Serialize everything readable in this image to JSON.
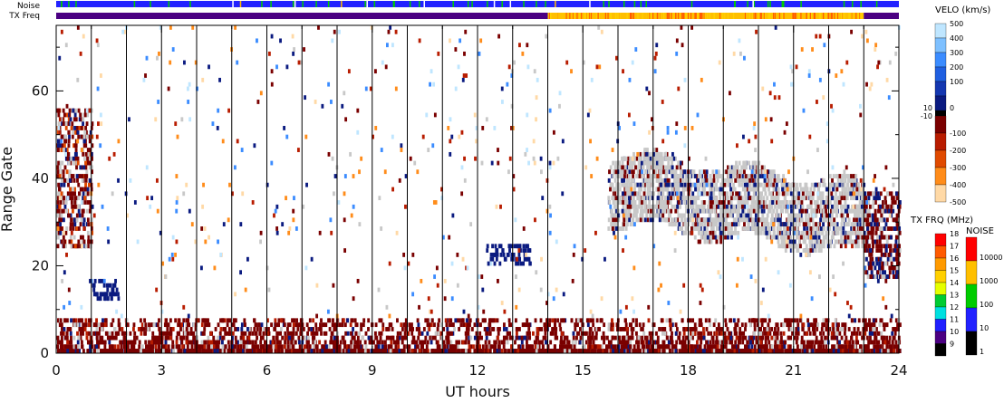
{
  "chart_data": {
    "type": "heatmap",
    "xlabel": "UT hours",
    "ylabel": "Range Gate",
    "xlim": [
      0,
      24
    ],
    "ylim": [
      0,
      75
    ],
    "x_ticks": [
      "0",
      "3",
      "6",
      "9",
      "12",
      "15",
      "18",
      "21",
      "24"
    ],
    "x_tick_values": [
      0,
      3,
      6,
      9,
      12,
      15,
      18,
      21,
      24
    ],
    "y_ticks": [
      "0",
      "20",
      "40",
      "60"
    ],
    "y_tick_values": [
      0,
      20,
      40,
      60
    ],
    "scan_boundaries_hours": [
      1,
      2,
      3,
      4,
      5,
      6,
      7,
      8,
      9,
      10,
      11,
      12,
      13,
      14,
      15,
      16,
      17,
      18,
      19,
      20,
      21,
      22,
      23
    ],
    "top_strips": {
      "noise_label": "Noise",
      "txfreq_label": "TX Freq",
      "txfreq_segments": [
        {
          "start": 0,
          "end": 14,
          "color": "#4b0082"
        },
        {
          "start": 14,
          "end": 23,
          "color": "#ffbf00"
        },
        {
          "start": 23,
          "end": 24,
          "color": "#4b0082"
        }
      ]
    },
    "ground_scatter_color": "#c8c8c8",
    "scatter_regions": [
      {
        "name": "ground-scatter",
        "x": [
          15.7,
          23.0
        ],
        "y": [
          28,
          46
        ],
        "color": "#c8c8c8"
      },
      {
        "name": "negative-velocity",
        "x": [
          0.0,
          1.0
        ],
        "y": [
          24,
          58
        ],
        "color": "#8b0000"
      },
      {
        "name": "negative-velocity",
        "x": [
          23.0,
          24.0
        ],
        "y": [
          18,
          36
        ],
        "color": "#8b0000"
      },
      {
        "name": "near-range",
        "x": [
          0.0,
          24.0
        ],
        "y": [
          0,
          8
        ],
        "color": "#8b0000"
      },
      {
        "name": "positive-velocity",
        "x": [
          12.2,
          13.5
        ],
        "y": [
          20,
          25
        ],
        "color": "#000080"
      }
    ],
    "velocity_legend": {
      "title": "VELO (km/s)",
      "labels_positive": [
        "500",
        "400",
        "300",
        "200",
        "100",
        "0"
      ],
      "colors_positive": [
        "#bfe6ff",
        "#7ec0ff",
        "#3b8cff",
        "#1f5fe0",
        "#1437b0",
        "#0a1a80"
      ],
      "zero_labels": [
        "10",
        "-10"
      ],
      "labels_negative": [
        "-100",
        "-200",
        "-300",
        "-400",
        "-500"
      ],
      "colors_negative": [
        "#7a0000",
        "#b81c00",
        "#e04a00",
        "#ff8c1a",
        "#ffd9a6"
      ]
    },
    "txfreq_legend": {
      "title": "TX FRQ (MHz)",
      "labels": [
        "18",
        "17",
        "16",
        "15",
        "14",
        "13",
        "12",
        "11",
        "10",
        "9"
      ],
      "colors": [
        "#ff0000",
        "#ff5a00",
        "#ff9a00",
        "#ffd000",
        "#e6ff00",
        "#00cc33",
        "#00e0e0",
        "#2020ff",
        "#4b0082",
        "#000000"
      ]
    },
    "noise_legend": {
      "title": "NOISE",
      "labels": [
        "10000",
        "1000",
        "100",
        "10",
        "1"
      ],
      "colors": [
        "#ff0000",
        "#ffbf00",
        "#00cc00",
        "#2222ff",
        "#000000"
      ]
    }
  }
}
